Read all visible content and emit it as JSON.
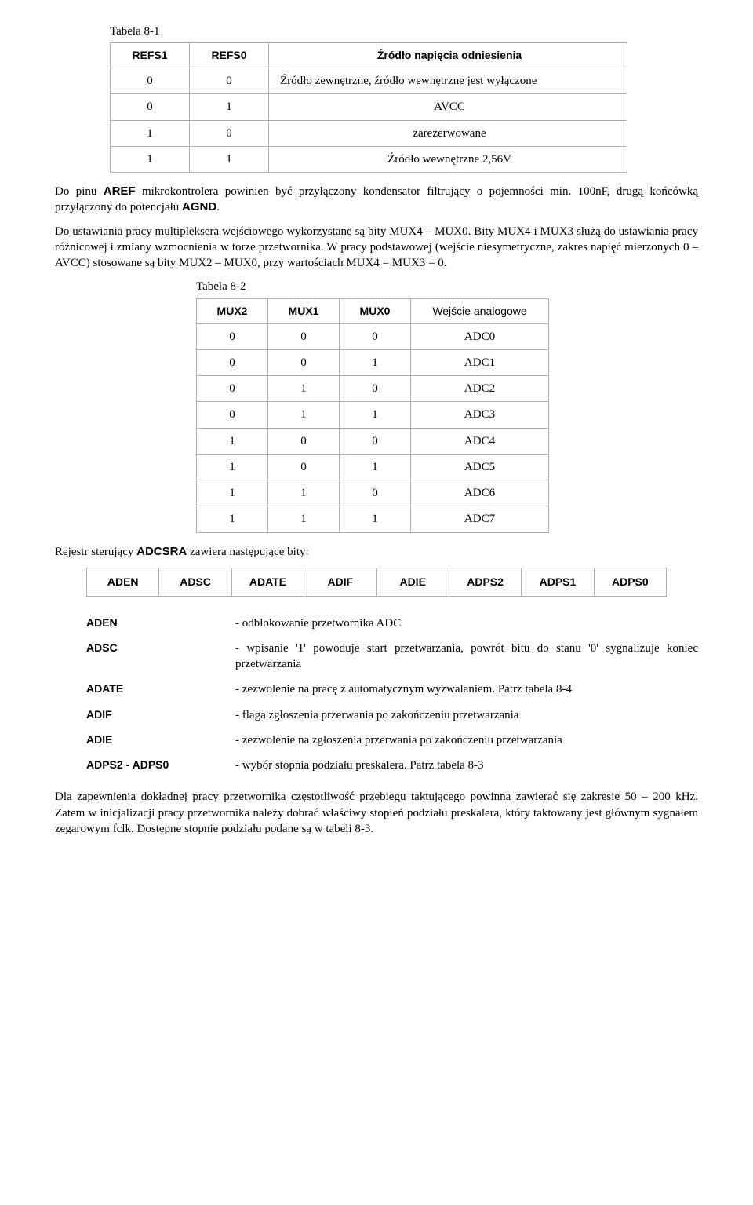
{
  "tbl81": {
    "caption": "Tabela 8-1",
    "headers": [
      "REFS1",
      "REFS0",
      "Źródło napięcia odniesienia"
    ],
    "rows": [
      [
        "0",
        "0",
        "Źródło zewnętrzne, źródło wewnętrzne jest wyłączone"
      ],
      [
        "0",
        "1",
        "AVCC"
      ],
      [
        "1",
        "0",
        "zarezerwowane"
      ],
      [
        "1",
        "1",
        "Źródło wewnętrzne 2,56V"
      ]
    ]
  },
  "para1": {
    "pre": "Do pinu ",
    "aref": "AREF",
    "mid": " mikrokontrolera powinien być przyłączony kondensator filtrujący o pojemności min. 100nF, drugą końcówką przyłączony do potencjału ",
    "agnd": "AGND",
    "post": "."
  },
  "para2": "Do ustawiania pracy multipleksera wejściowego wykorzystane są bity MUX4 – MUX0. Bity MUX4 i MUX3 służą do ustawiania pracy różnicowej i zmiany wzmocnienia w torze przetwornika. W pracy podstawowej (wejście niesymetryczne, zakres napięć mierzonych 0 – AVCC) stosowane są bity MUX2 – MUX0, przy wartościach MUX4 = MUX3 = 0.",
  "tbl82": {
    "caption": "Tabela 8-2",
    "headers": [
      "MUX2",
      "MUX1",
      "MUX0",
      "Wejście analogowe"
    ],
    "rows": [
      [
        "0",
        "0",
        "0",
        "ADC0"
      ],
      [
        "0",
        "0",
        "1",
        "ADC1"
      ],
      [
        "0",
        "1",
        "0",
        "ADC2"
      ],
      [
        "0",
        "1",
        "1",
        "ADC3"
      ],
      [
        "1",
        "0",
        "0",
        "ADC4"
      ],
      [
        "1",
        "0",
        "1",
        "ADC5"
      ],
      [
        "1",
        "1",
        "0",
        "ADC6"
      ],
      [
        "1",
        "1",
        "1",
        "ADC7"
      ]
    ]
  },
  "regline": {
    "pre": "Rejestr sterujący ",
    "name": "ADCSRA",
    "post": " zawiera następujące bity:"
  },
  "regbits": [
    "ADEN",
    "ADSC",
    "ADATE",
    "ADIF",
    "ADIE",
    "ADPS2",
    "ADPS1",
    "ADPS0"
  ],
  "defs": [
    {
      "k": "ADEN",
      "v": "- odblokowanie przetwornika ADC"
    },
    {
      "k": "ADSC",
      "v": "- wpisanie '1' powoduje start przetwarzania, powrót bitu do stanu '0' sygnalizuje koniec przetwarzania"
    },
    {
      "k": "ADATE",
      "v": "- zezwolenie na pracę z automatycznym wyzwalaniem. Patrz tabela 8-4"
    },
    {
      "k": "ADIF",
      "v": "- flaga zgłoszenia przerwania po zakończeniu przetwarzania"
    },
    {
      "k": "ADIE",
      "v": "- zezwolenie na zgłoszenia przerwania po zakończeniu przetwarzania"
    },
    {
      "k": "ADPS2 - ADPS0",
      "v": "- wybór stopnia podziału preskalera. Patrz tabela 8-3"
    }
  ],
  "para3": "Dla zapewnienia dokładnej pracy przetwornika częstotliwość przebiegu taktującego powinna zawierać się zakresie 50 – 200 kHz. Zatem w inicjalizacji pracy przetwornika należy dobrać właściwy stopień podziału preskalera, który taktowany jest głównym sygnałem zegarowym fclk. Dostępne stopnie podziału podane są w tabeli 8-3."
}
